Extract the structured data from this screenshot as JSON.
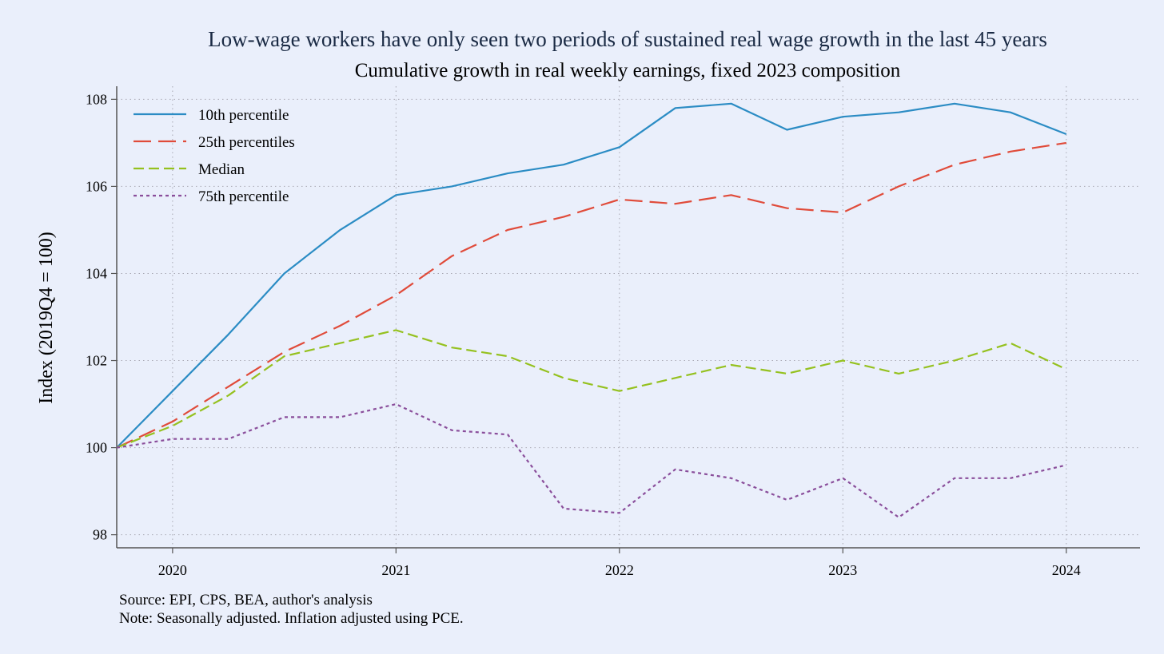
{
  "chart_data": {
    "type": "line",
    "title": "Low-wage workers have only seen two periods of sustained real wage growth in the last 45 years",
    "subtitle": "Cumulative growth in real weekly earnings, fixed 2023 composition",
    "xlabel": "",
    "ylabel": "Index (2019Q4 = 100)",
    "xlim": [
      2019.75,
      2024.33
    ],
    "ylim": [
      97.7,
      108.3
    ],
    "xticks": [
      2020,
      2021,
      2022,
      2023,
      2024
    ],
    "yticks": [
      98,
      100,
      102,
      104,
      106,
      108
    ],
    "grid": true,
    "legend": "top-left",
    "x": [
      2019.75,
      2020.0,
      2020.25,
      2020.5,
      2020.75,
      2021.0,
      2021.25,
      2021.5,
      2021.75,
      2022.0,
      2022.25,
      2022.5,
      2022.75,
      2023.0,
      2023.25,
      2023.5,
      2023.75,
      2024.0
    ],
    "series": [
      {
        "name": "10th percentile",
        "color": "#2b8cc4",
        "dash": "",
        "values": [
          100.0,
          101.3,
          102.6,
          104.0,
          105.0,
          105.8,
          106.0,
          106.3,
          106.5,
          106.9,
          107.8,
          107.9,
          107.3,
          107.6,
          107.7,
          107.9,
          107.7,
          107.2
        ]
      },
      {
        "name": "25th percentiles",
        "color": "#e04b3a",
        "dash": "22 9",
        "values": [
          100.0,
          100.6,
          101.4,
          102.2,
          102.8,
          103.5,
          104.4,
          105.0,
          105.3,
          105.7,
          105.6,
          105.8,
          105.5,
          105.4,
          106.0,
          106.5,
          106.8,
          107.0
        ]
      },
      {
        "name": "Median",
        "color": "#95c11f",
        "dash": "13 6",
        "values": [
          100.0,
          100.5,
          101.2,
          102.1,
          102.4,
          102.7,
          102.3,
          102.1,
          101.6,
          101.3,
          101.6,
          101.9,
          101.7,
          102.0,
          101.7,
          102.0,
          102.4,
          101.8
        ]
      },
      {
        "name": "75th percentile",
        "color": "#8a4e9b",
        "dash": "4 4",
        "values": [
          100.0,
          100.2,
          100.2,
          100.7,
          100.7,
          101.0,
          100.4,
          100.3,
          98.6,
          98.5,
          99.5,
          99.3,
          98.8,
          99.3,
          98.4,
          99.3,
          99.3,
          99.6
        ]
      }
    ]
  },
  "notes": [
    "Source: EPI, CPS, BEA, author's analysis",
    "Note: Seasonally adjusted. Inflation adjusted using PCE."
  ]
}
